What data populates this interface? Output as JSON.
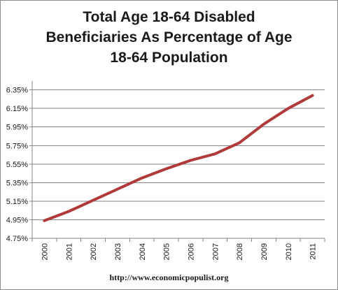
{
  "chart_data": {
    "type": "line",
    "title": "Total Age 18-64 Disabled\nBeneficiaries As Percentage of Age\n18-64 Population",
    "xlabel": "",
    "ylabel": "",
    "x": [
      "2000",
      "2001",
      "2002",
      "2003",
      "2004",
      "2005",
      "2006",
      "2007",
      "2008",
      "2009",
      "2010",
      "2011"
    ],
    "y_ticks": [
      "4.75%",
      "4.95%",
      "5.15%",
      "5.35%",
      "5.55%",
      "5.75%",
      "5.95%",
      "6.15%",
      "6.35%"
    ],
    "ylim": [
      4.75,
      6.4
    ],
    "grid": true,
    "legend": "none",
    "series": [
      {
        "color": "#b03a3a",
        "values": [
          4.94,
          5.04,
          5.16,
          5.28,
          5.4,
          5.5,
          5.59,
          5.66,
          5.78,
          5.98,
          6.15,
          6.29
        ]
      }
    ]
  },
  "footer": "http://www.economicpopulist.org"
}
